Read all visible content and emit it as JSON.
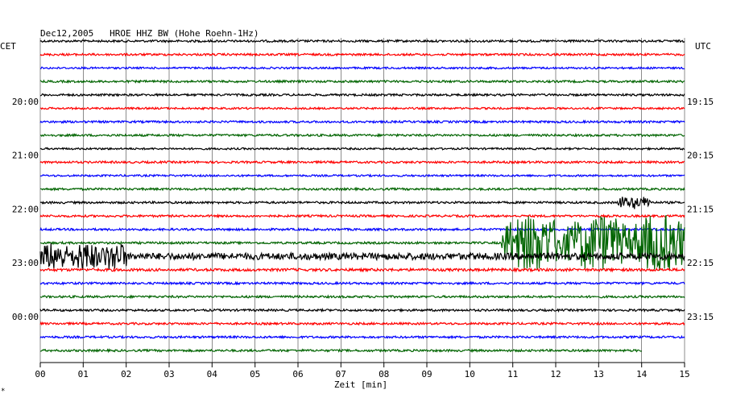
{
  "header": {
    "title": "Dec12,2005   HROE HHZ BW (Hohe Roehn-1Hz)",
    "left_tz": "CET",
    "right_tz": "UTC",
    "corner_mark": "*"
  },
  "colors": {
    "background": "#ffffff",
    "grid": "#000000",
    "trace_cycle": [
      "#000000",
      "#ff0000",
      "#0000ff",
      "#006400"
    ]
  },
  "chart_data": {
    "type": "line",
    "xlabel": "Zeit [min]",
    "xlim": [
      0,
      15
    ],
    "x_ticks": [
      "00",
      "01",
      "02",
      "03",
      "04",
      "05",
      "06",
      "07",
      "08",
      "09",
      "10",
      "11",
      "12",
      "13",
      "14",
      "15"
    ],
    "trace_count": 24,
    "minutes_per_trace": 15,
    "left_hour_labels": [
      {
        "trace": 5,
        "text": "20:00"
      },
      {
        "trace": 9,
        "text": "21:00"
      },
      {
        "trace": 13,
        "text": "22:00"
      },
      {
        "trace": 17,
        "text": "23:00"
      },
      {
        "trace": 21,
        "text": "00:00"
      }
    ],
    "right_hour_labels": [
      {
        "trace": 5,
        "text": "19:15"
      },
      {
        "trace": 9,
        "text": "20:15"
      },
      {
        "trace": 13,
        "text": "21:15"
      },
      {
        "trace": 17,
        "text": "22:15"
      },
      {
        "trace": 21,
        "text": "23:15"
      }
    ],
    "traces": [
      {
        "index": 1,
        "color": "#000000",
        "amplitude": 0.08,
        "end_minute": 15
      },
      {
        "index": 2,
        "color": "#ff0000",
        "amplitude": 0.08,
        "end_minute": 15
      },
      {
        "index": 3,
        "color": "#0000ff",
        "amplitude": 0.07,
        "end_minute": 15
      },
      {
        "index": 4,
        "color": "#006400",
        "amplitude": 0.08,
        "end_minute": 15
      },
      {
        "index": 5,
        "color": "#000000",
        "amplitude": 0.08,
        "end_minute": 15
      },
      {
        "index": 6,
        "color": "#ff0000",
        "amplitude": 0.07,
        "end_minute": 15
      },
      {
        "index": 7,
        "color": "#0000ff",
        "amplitude": 0.08,
        "end_minute": 15
      },
      {
        "index": 8,
        "color": "#006400",
        "amplitude": 0.08,
        "end_minute": 15
      },
      {
        "index": 9,
        "color": "#000000",
        "amplitude": 0.07,
        "end_minute": 15
      },
      {
        "index": 10,
        "color": "#ff0000",
        "amplitude": 0.08,
        "end_minute": 15
      },
      {
        "index": 11,
        "color": "#0000ff",
        "amplitude": 0.07,
        "end_minute": 15
      },
      {
        "index": 12,
        "color": "#006400",
        "amplitude": 0.08,
        "end_minute": 15
      },
      {
        "index": 13,
        "color": "#000000",
        "amplitude": 0.08,
        "end_minute": 15,
        "events": [
          {
            "start": 13.45,
            "end": 14.2,
            "amplitude": 0.5
          }
        ]
      },
      {
        "index": 14,
        "color": "#ff0000",
        "amplitude": 0.08,
        "end_minute": 15
      },
      {
        "index": 15,
        "color": "#0000ff",
        "amplitude": 0.08,
        "end_minute": 15
      },
      {
        "index": 16,
        "color": "#006400",
        "amplitude": 0.08,
        "end_minute": 15,
        "events": [
          {
            "start": 10.75,
            "end": 15.0,
            "amplitude": 2.2
          }
        ]
      },
      {
        "index": 17,
        "color": "#000000",
        "amplitude": 0.25,
        "end_minute": 15,
        "events": [
          {
            "start": 0.0,
            "end": 2.0,
            "amplitude": 1.1
          }
        ]
      },
      {
        "index": 18,
        "color": "#ff0000",
        "amplitude": 0.1,
        "end_minute": 15
      },
      {
        "index": 19,
        "color": "#0000ff",
        "amplitude": 0.08,
        "end_minute": 15
      },
      {
        "index": 20,
        "color": "#006400",
        "amplitude": 0.08,
        "end_minute": 15
      },
      {
        "index": 21,
        "color": "#000000",
        "amplitude": 0.08,
        "end_minute": 15
      },
      {
        "index": 22,
        "color": "#ff0000",
        "amplitude": 0.08,
        "end_minute": 15
      },
      {
        "index": 23,
        "color": "#0000ff",
        "amplitude": 0.08,
        "end_minute": 15
      },
      {
        "index": 24,
        "color": "#006400",
        "amplitude": 0.08,
        "end_minute": 14
      }
    ]
  }
}
